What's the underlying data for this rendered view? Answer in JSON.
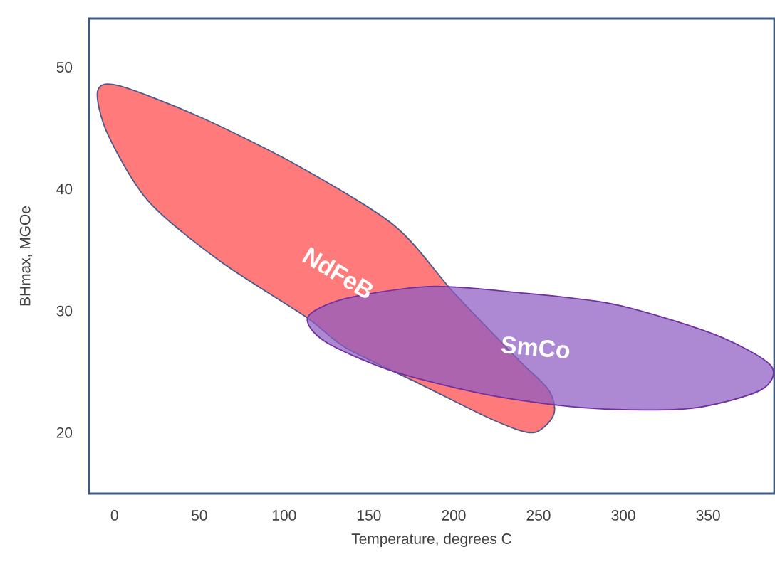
{
  "chart_data": {
    "type": "area",
    "xlabel": "Temperature, degrees C",
    "ylabel": "BHmax, MGOe",
    "xlim": [
      -15,
      389
    ],
    "ylim": [
      15,
      54
    ],
    "xticks": [
      0,
      50,
      100,
      150,
      200,
      250,
      300,
      350
    ],
    "yticks": [
      20,
      30,
      40,
      50
    ],
    "series": [
      {
        "name": "NdFeB",
        "color": "#ff7b7b",
        "x": [
          -10,
          2,
          49,
          107,
          165,
          200,
          238,
          256,
          259,
          247,
          224,
          180,
          136,
          113,
          63,
          20,
          -4
        ],
        "values": [
          48,
          48.5,
          46,
          42,
          37,
          31.5,
          26,
          23.5,
          21.5,
          20,
          21,
          24,
          27,
          29.5,
          34,
          39,
          44.5
        ]
      },
      {
        "name": "SmCo",
        "color": "#8e5bc4",
        "x": [
          114,
          136,
          186,
          238,
          296,
          355,
          387,
          381,
          340,
          282,
          224,
          165,
          124
        ],
        "values": [
          29.5,
          31,
          32,
          31.5,
          30.5,
          28,
          25.5,
          23.5,
          22,
          22,
          23,
          25,
          27.5
        ]
      }
    ]
  }
}
